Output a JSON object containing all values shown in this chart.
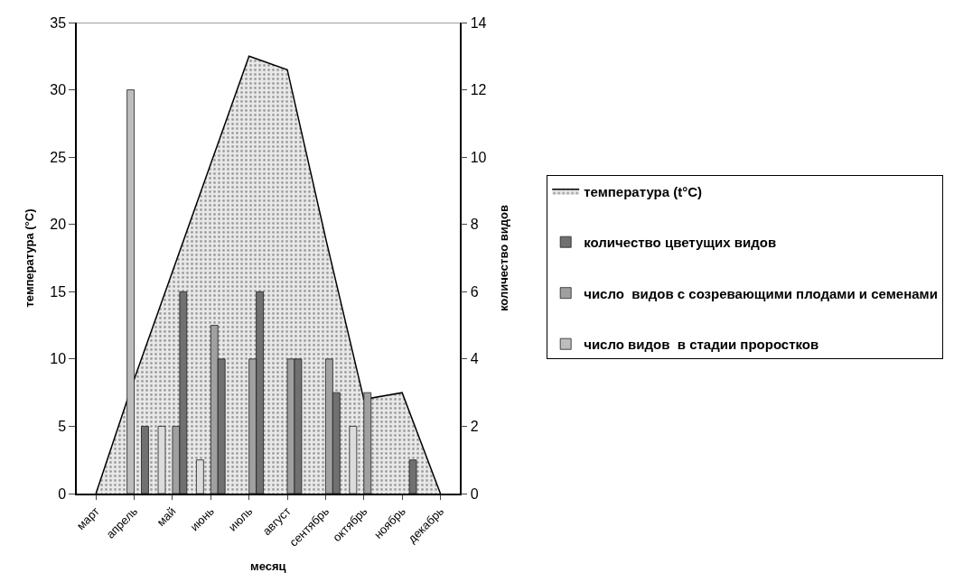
{
  "chart_data": {
    "type": "bar",
    "xlabel": "месяц",
    "ylabel": "температура (°C)",
    "y2label": "количество видов",
    "categories": [
      "март",
      "апрель",
      "май",
      "июнь",
      "июль",
      "август",
      "сентябрь",
      "октябрь",
      "ноябрь",
      "декабрь"
    ],
    "ylim": [
      0,
      35
    ],
    "yticks": [
      0,
      5,
      10,
      15,
      20,
      25,
      30,
      35
    ],
    "y2lim": [
      0,
      14
    ],
    "y2ticks": [
      0,
      2,
      4,
      6,
      8,
      10,
      12,
      14
    ],
    "legend": "right",
    "series": [
      {
        "name": "температура (t°C)",
        "type": "area",
        "axis": "y",
        "color": "#e8e8e8",
        "values": [
          0,
          8.5,
          16.5,
          24.5,
          32.5,
          31.5,
          19,
          7,
          7.5,
          0
        ]
      },
      {
        "axis": "y2",
        "color": "#dcdcdc",
        "values": [
          null,
          null,
          2,
          1,
          null,
          null,
          null,
          2,
          null,
          null
        ]
      },
      {
        "name": "число видов  в стадии проростков",
        "axis": "y2",
        "color": "#bdbdbd",
        "values": [
          null,
          12,
          null,
          null,
          null,
          null,
          null,
          null,
          null,
          null
        ]
      },
      {
        "name": "число  видов с созревающими плодами и семенами",
        "axis": "y2",
        "color": "#a0a0a0",
        "values": [
          null,
          null,
          2,
          5,
          4,
          4,
          4,
          3,
          null,
          null
        ]
      },
      {
        "name": "количество цветущих видов",
        "axis": "y2",
        "color": "#707070",
        "values": [
          null,
          2,
          6,
          4,
          6,
          4,
          3,
          null,
          1,
          null
        ]
      }
    ]
  }
}
